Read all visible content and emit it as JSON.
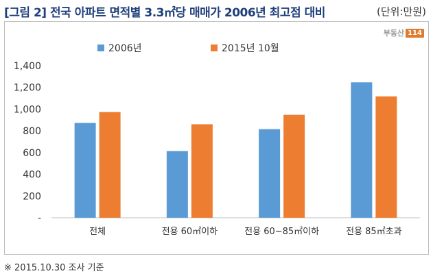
{
  "header": {
    "title": "[그림 2] 전국 아파트 면적별 3.3㎡당 매매가 2006년 최고점 대비",
    "unit": "(단위:만원)"
  },
  "brand": {
    "text": "부동산",
    "badge": "114"
  },
  "footnote": "※  2015.10.30 조사 기준",
  "colors": {
    "series_2006": "#5b9bd5",
    "series_2015": "#ed7d31"
  },
  "chart_data": {
    "type": "bar",
    "categories": [
      "전체",
      "전용 60㎡이하",
      "전용 60~85㎡이하",
      "전용 85㎡초과"
    ],
    "series": [
      {
        "name": "2006년",
        "values": [
          873,
          614,
          816,
          1247
        ]
      },
      {
        "name": "2015년 10월",
        "values": [
          973,
          861,
          948,
          1118
        ]
      }
    ],
    "ylim": [
      0,
      1400
    ],
    "yticks": [
      "-",
      "200",
      "400",
      "600",
      "800",
      "1,000",
      "1,200",
      "1,400"
    ],
    "legend": "top-center",
    "grid": false
  }
}
